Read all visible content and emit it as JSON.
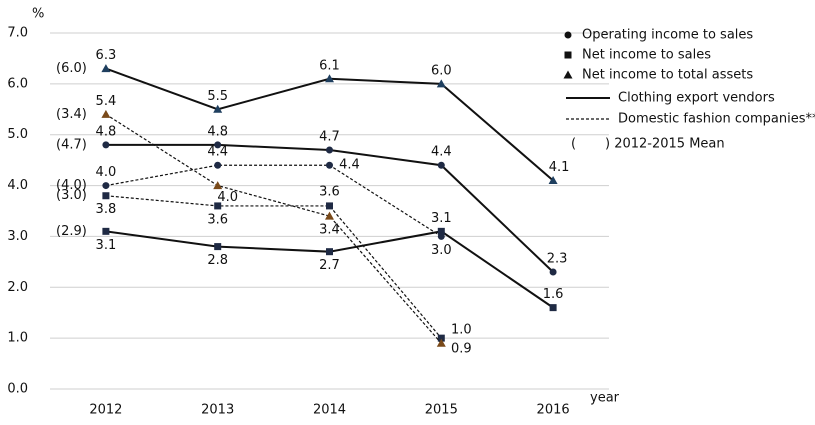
{
  "chart_data": {
    "type": "line",
    "y_unit": "%",
    "x_label": "year",
    "categories": [
      "2012",
      "2013",
      "2014",
      "2015",
      "2016"
    ],
    "ylim": [
      0,
      7
    ],
    "yticks": [
      {
        "value": 0,
        "label": "0.0"
      },
      {
        "value": 1,
        "label": "1.0"
      },
      {
        "value": 2,
        "label": "2.0"
      },
      {
        "value": 3,
        "label": "3.0"
      },
      {
        "value": 4,
        "label": "4.0"
      },
      {
        "value": 5,
        "label": "5.0"
      },
      {
        "value": 6,
        "label": "6.0"
      },
      {
        "value": 7,
        "label": "7.0"
      }
    ],
    "grid": true,
    "mean_note": "(       ) 2012-2015 Mean",
    "series": [
      {
        "name": "Operating income to sales",
        "group": "Clothing export vendors",
        "marker": "circle",
        "dash": false,
        "color": "#1f2a44",
        "values": [
          4.8,
          4.8,
          4.7,
          4.4,
          2.3
        ],
        "value_labels": [
          "4.8",
          "4.8",
          "4.7",
          "4.4",
          "2.3"
        ],
        "mean": 4.7,
        "mean_label": "(4.7)"
      },
      {
        "name": "Net income to sales",
        "group": "Clothing export vendors",
        "marker": "square",
        "dash": false,
        "color": "#1f2a44",
        "values": [
          3.1,
          2.8,
          2.7,
          3.1,
          1.6
        ],
        "value_labels": [
          "3.1",
          "2.8",
          "2.7",
          "3.1",
          "1.6"
        ],
        "mean": 2.9,
        "mean_label": "(2.9)"
      },
      {
        "name": "Net income to total assets",
        "group": "Clothing export vendors",
        "marker": "triangle",
        "dash": false,
        "color": "#1f3f5f",
        "values": [
          6.3,
          5.5,
          6.1,
          6.0,
          4.1
        ],
        "value_labels": [
          "6.3",
          "5.5",
          "6.1",
          "6.0",
          "4.1"
        ],
        "mean": 6.0,
        "mean_label": "(6.0)"
      },
      {
        "name": "Operating income to sales",
        "group": "Domestic fashion companies**",
        "marker": "circle",
        "dash": true,
        "color": "#1f2a44",
        "values": [
          4.0,
          4.4,
          4.4,
          3.0,
          null
        ],
        "value_labels": [
          "4.0",
          "4.4",
          "4.4",
          "3.0",
          null
        ],
        "mean": 4.0,
        "mean_label": "(4.0)"
      },
      {
        "name": "Net income to sales",
        "group": "Domestic fashion companies**",
        "marker": "square",
        "dash": true,
        "color": "#1f2a44",
        "values": [
          3.8,
          3.6,
          3.6,
          1.0,
          null
        ],
        "value_labels": [
          "3.8",
          "3.6",
          "3.6",
          "1.0",
          null
        ],
        "mean": 3.0,
        "mean_label": "(3.0)"
      },
      {
        "name": "Net income to total assets",
        "group": "Domestic fashion companies**",
        "marker": "triangle",
        "dash": true,
        "color": "#7a4a1a",
        "values": [
          5.4,
          4.0,
          3.4,
          0.9,
          null
        ],
        "value_labels": [
          "5.4",
          "4.0",
          "3.4",
          "0.9",
          null
        ],
        "mean": 3.4,
        "mean_label": "(3.4)"
      }
    ]
  }
}
